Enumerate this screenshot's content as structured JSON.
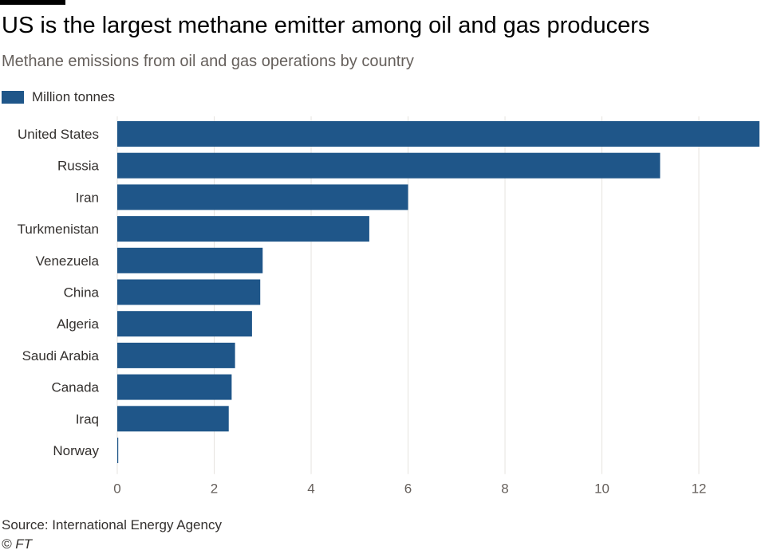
{
  "colors": {
    "bar": "#1f5689",
    "grid": "#e6e3df",
    "tick_text": "#66605c",
    "category_text": "#33302e"
  },
  "chart_data": {
    "type": "bar",
    "orientation": "horizontal",
    "title": "US is the largest methane emitter among oil and gas producers",
    "subtitle": "Methane emissions from oil and gas operations by country",
    "legend": {
      "label": "Million tonnes",
      "placement": "top-left"
    },
    "categories": [
      "United States",
      "Russia",
      "Iran",
      "Turkmenistan",
      "Venezuela",
      "China",
      "Algeria",
      "Saudi Arabia",
      "Canada",
      "Iraq",
      "Norway"
    ],
    "values": [
      13.25,
      11.2,
      6.0,
      5.2,
      3.0,
      2.95,
      2.78,
      2.43,
      2.36,
      2.3,
      0.02
    ],
    "xlim": [
      0,
      13.25
    ],
    "xticks": [
      0,
      2,
      4,
      6,
      8,
      10,
      12
    ],
    "grid": true,
    "source": "Source: International Energy Agency",
    "credit": "© FT"
  }
}
